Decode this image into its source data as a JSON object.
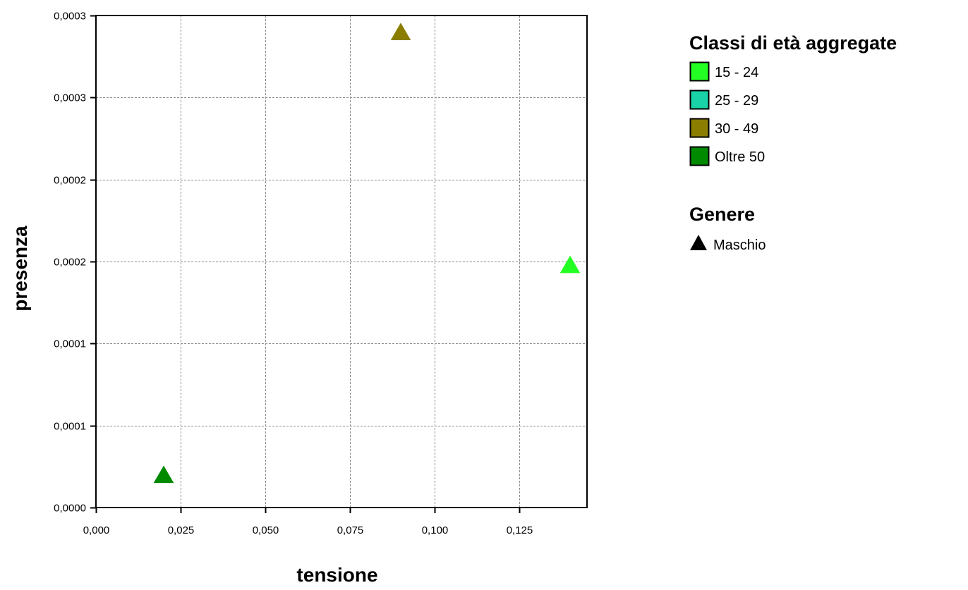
{
  "chart_data": {
    "type": "scatter",
    "title": "",
    "xlabel": "tensione",
    "ylabel": "presenza",
    "xlim": [
      0,
      0.145
    ],
    "ylim": [
      0,
      0.0003
    ],
    "grid": true,
    "x_ticks": [
      {
        "value": 0,
        "label": "0,000"
      },
      {
        "value": 0.025,
        "label": "0,025"
      },
      {
        "value": 0.05,
        "label": "0,050"
      },
      {
        "value": 0.075,
        "label": "0,075"
      },
      {
        "value": 0.1,
        "label": "0,100"
      },
      {
        "value": 0.125,
        "label": "0,125"
      }
    ],
    "y_ticks": [
      {
        "value": 0,
        "label": "0,0000"
      },
      {
        "value": 5e-05,
        "label": "0,0001"
      },
      {
        "value": 0.0001,
        "label": "0,0001"
      },
      {
        "value": 0.00015,
        "label": "0,0002"
      },
      {
        "value": 0.0002,
        "label": "0,0002"
      },
      {
        "value": 0.00025,
        "label": "0,0003"
      },
      {
        "value": 0.0003,
        "label": "0,0003"
      }
    ],
    "points": [
      {
        "x": 0.02,
        "y": 2e-05,
        "class": "Oltre 50",
        "genere": "Maschio",
        "color": "#008a00"
      },
      {
        "x": 0.09,
        "y": 0.00029,
        "class": "30 - 49",
        "genere": "Maschio",
        "color": "#8a7d00"
      },
      {
        "x": 0.14,
        "y": 0.000148,
        "class": "15 - 24",
        "genere": "Maschio",
        "color": "#23ff23"
      }
    ],
    "legend": {
      "position": "right",
      "color_title": "Classi di età aggregate",
      "color_entries": [
        {
          "label": "15 - 24",
          "color": "#23ff23"
        },
        {
          "label": "25 - 29",
          "color": "#19d2a8"
        },
        {
          "label": "30 - 49",
          "color": "#8a7d00"
        },
        {
          "label": "Oltre 50",
          "color": "#008a00"
        }
      ],
      "shape_title": "Genere",
      "shape_entries": [
        {
          "label": "Maschio",
          "marker": "triangle",
          "color": "#000000"
        }
      ]
    }
  }
}
